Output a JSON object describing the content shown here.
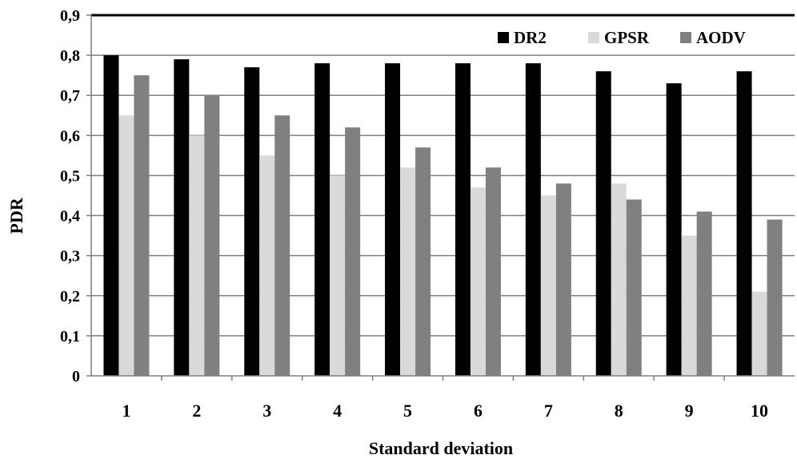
{
  "chart_data": {
    "type": "bar",
    "categories": [
      "1",
      "2",
      "3",
      "4",
      "5",
      "6",
      "7",
      "8",
      "9",
      "10"
    ],
    "series": [
      {
        "name": "DR2",
        "values": [
          0.8,
          0.79,
          0.77,
          0.78,
          0.78,
          0.78,
          0.78,
          0.76,
          0.73,
          0.76
        ],
        "color": "#000000"
      },
      {
        "name": "GPSR",
        "values": [
          0.65,
          0.6,
          0.55,
          0.5,
          0.52,
          0.47,
          0.45,
          0.48,
          0.35,
          0.21
        ],
        "color": "#d9d9d9"
      },
      {
        "name": "AODV",
        "values": [
          0.75,
          0.7,
          0.65,
          0.62,
          0.57,
          0.52,
          0.48,
          0.44,
          0.41,
          0.39
        ],
        "color": "#808080"
      }
    ],
    "xlabel": "Standard deviation",
    "ylabel": "PDR",
    "ylim": [
      0,
      0.9
    ],
    "yticks": [
      "0",
      "0,1",
      "0,2",
      "0,3",
      "0,4",
      "0,5",
      "0,6",
      "0,7",
      "0,8",
      "0,9"
    ],
    "grid": true,
    "legend_position": "top-right"
  }
}
